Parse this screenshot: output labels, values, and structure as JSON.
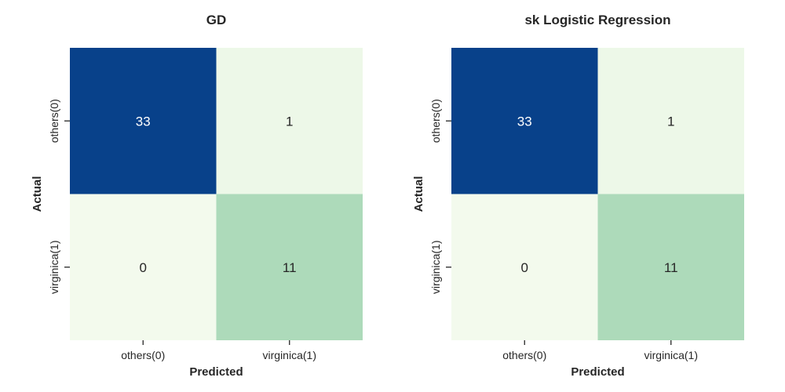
{
  "chart_data": [
    {
      "type": "heatmap",
      "title": "GD",
      "xlabel": "Predicted",
      "ylabel": "Actual",
      "x_categories": [
        "others(0)",
        "virginica(1)"
      ],
      "y_categories": [
        "others(0)",
        "virginica(1)"
      ],
      "values": [
        [
          33,
          1
        ],
        [
          0,
          11
        ]
      ],
      "colormap": "GnBu",
      "colorbar": false
    },
    {
      "type": "heatmap",
      "title": "sk Logistic Regression",
      "xlabel": "Predicted",
      "ylabel": "Actual",
      "x_categories": [
        "others(0)",
        "virginica(1)"
      ],
      "y_categories": [
        "others(0)",
        "virginica(1)"
      ],
      "values": [
        [
          33,
          1
        ],
        [
          0,
          11
        ]
      ],
      "colormap": "GnBu",
      "colorbar": false
    }
  ],
  "colors": {
    "high": "#08418a",
    "mid": "#b5e2bc",
    "low": "#f3faed",
    "text_light": "#ffffff",
    "text_dark": "#262626"
  }
}
